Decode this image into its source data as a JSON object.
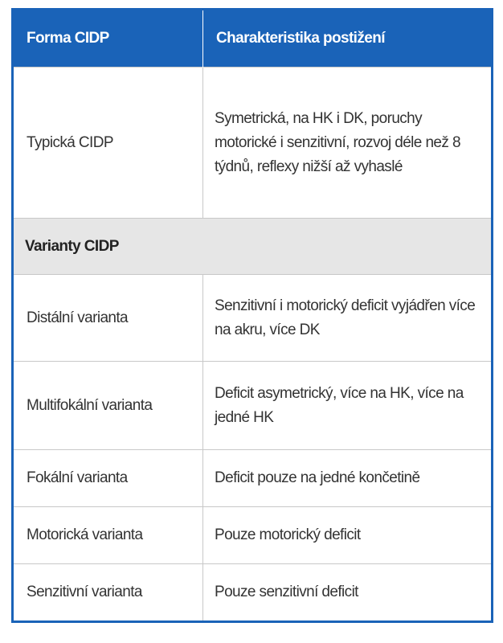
{
  "table": {
    "header": [
      "Forma CIDP",
      "Charakteristika postižení"
    ],
    "rows": [
      [
        "Typická CIDP",
        "Symetrická, na HK i DK, poruchy motorické i senzitivní, rozvoj déle než 8 týdnů, reflexy nižší až vyhaslé"
      ],
      [
        "Varianty CIDP"
      ],
      [
        "Distální varianta",
        "Senzitivní i motorický deficit vyjádřen více na akru, více DK"
      ],
      [
        "Multifokální varianta",
        "Deficit asymetrický, více na HK, více na jedné HK"
      ],
      [
        "Fokální varianta",
        "Deficit pouze na jedné končetině"
      ],
      [
        "Motorická varianta",
        "Pouze motorický deficit"
      ],
      [
        "Senzitivní varianta",
        "Pouze senzitivní deficit"
      ]
    ]
  }
}
